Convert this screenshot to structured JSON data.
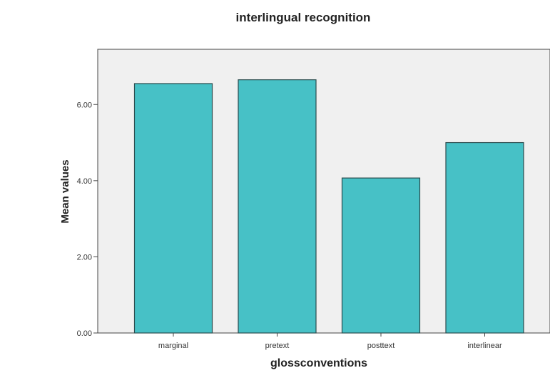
{
  "chart_data": {
    "type": "bar",
    "title": "interlingual recognition",
    "xlabel": "glossconventions",
    "ylabel": "Mean values",
    "categories": [
      "marginal",
      "pretext",
      "posttext",
      "interlinear"
    ],
    "values": [
      6.55,
      6.65,
      4.07,
      5.0
    ],
    "ylim": [
      0,
      7.45
    ],
    "yticks": [
      0,
      2,
      4,
      6
    ],
    "ytick_labels": [
      "0.00",
      "2.00",
      "4.00",
      "6.00"
    ],
    "grid": false,
    "legend": "none",
    "colors": {
      "bar_fill": "#47c1c6",
      "bar_stroke": "#2b4c4e",
      "plot_bg": "#f0f0f0",
      "axis": "#444444"
    }
  }
}
